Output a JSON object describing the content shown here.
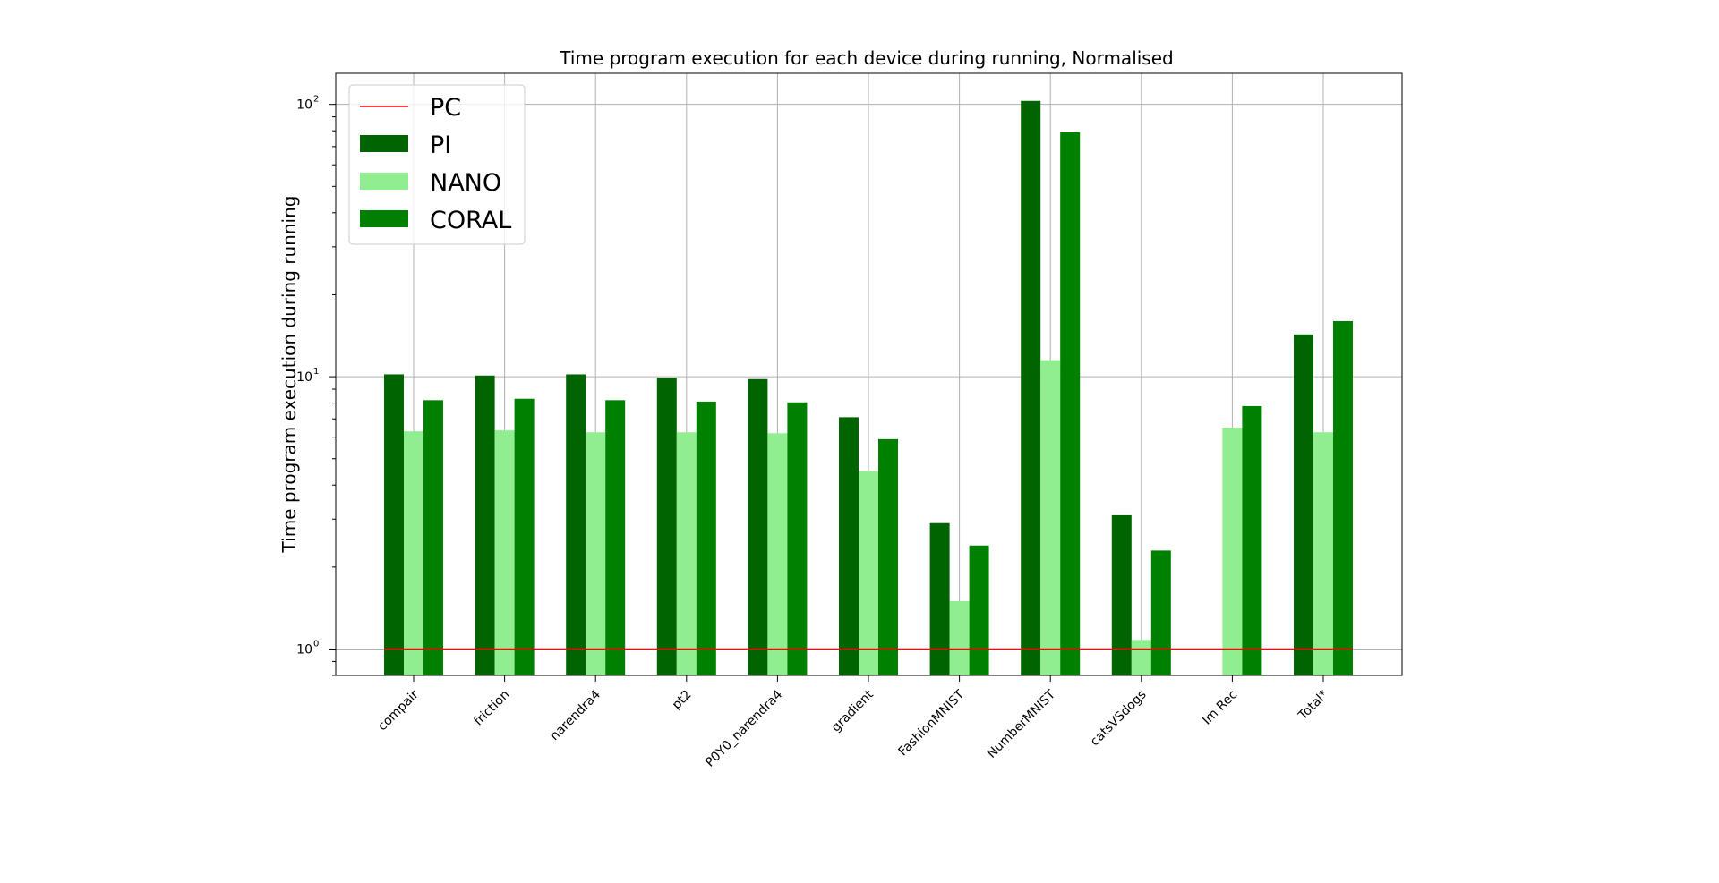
{
  "chart_data": {
    "type": "bar",
    "title": "Time program execution for each device during running, Normalised",
    "xlabel": "",
    "ylabel": "Time program execution during running",
    "y_scale": "log",
    "ylim": [
      0.8,
      130
    ],
    "y_ticks": [
      {
        "value": 1,
        "base": "10",
        "exp": "0"
      },
      {
        "value": 10,
        "base": "10",
        "exp": "1"
      },
      {
        "value": 100,
        "base": "10",
        "exp": "2"
      }
    ],
    "grid": true,
    "legend_position": "top-left",
    "categories": [
      "compair",
      "friction",
      "narendra4",
      "pt2",
      "P0Y0_narendra4",
      "gradient",
      "FashionMNIST",
      "NumberMNIST",
      "catsVSdogs",
      "Im Rec",
      "Total*"
    ],
    "reference_line": {
      "name": "PC",
      "value": 1,
      "color": "#ff0000"
    },
    "series": [
      {
        "name": "PI",
        "color": "#006400",
        "values": [
          10.2,
          10.1,
          10.2,
          9.9,
          9.8,
          7.1,
          2.9,
          103,
          3.1,
          null,
          14.3
        ]
      },
      {
        "name": "NANO",
        "color": "#90ee90",
        "values": [
          6.3,
          6.35,
          6.25,
          6.25,
          6.2,
          4.5,
          1.5,
          11.5,
          1.08,
          6.5,
          6.25
        ]
      },
      {
        "name": "CORAL",
        "color": "#008000",
        "values": [
          8.2,
          8.3,
          8.2,
          8.1,
          8.05,
          5.9,
          2.4,
          79,
          2.3,
          7.8,
          16.0
        ]
      }
    ]
  }
}
